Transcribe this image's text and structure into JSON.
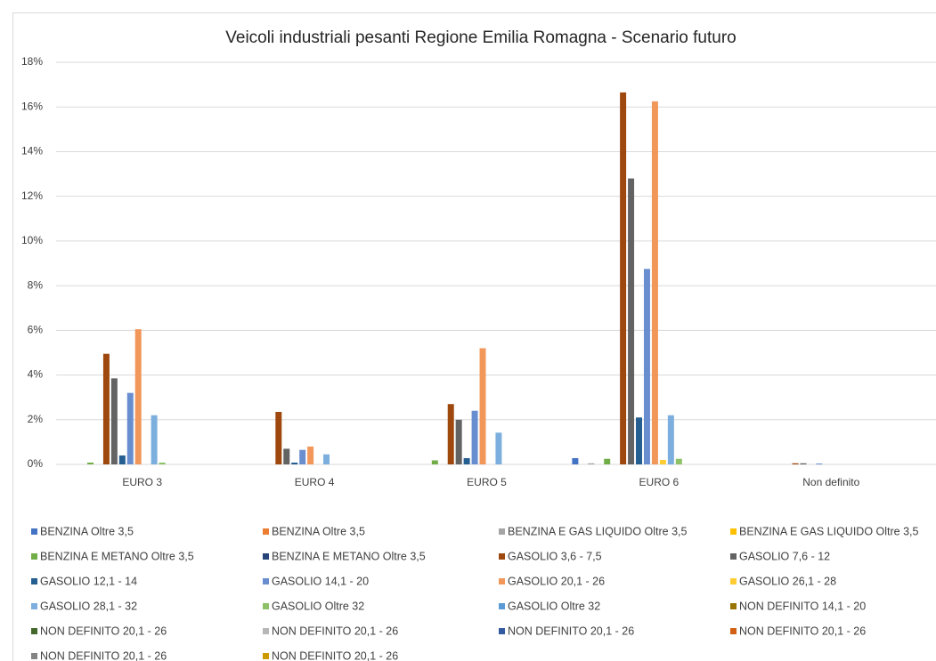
{
  "chart_data": {
    "type": "bar",
    "title": "Veicoli industriali pesanti Regione Emilia Romagna - Scenario futuro",
    "categories": [
      "EURO 3",
      "EURO 4",
      "EURO 5",
      "EURO 6",
      "Non definito"
    ],
    "ylim": [
      0,
      18
    ],
    "yticks": [
      {
        "value": 0,
        "label": "0%"
      },
      {
        "value": 2,
        "label": "2%"
      },
      {
        "value": 4,
        "label": "4%"
      },
      {
        "value": 6,
        "label": "6%"
      },
      {
        "value": 8,
        "label": "8%"
      },
      {
        "value": 10,
        "label": "10%"
      },
      {
        "value": 12,
        "label": "12%"
      },
      {
        "value": 14,
        "label": "14%"
      },
      {
        "value": 16,
        "label": "16%"
      },
      {
        "value": 18,
        "label": "18%"
      }
    ],
    "grid": true,
    "legend": "bottom",
    "series": [
      {
        "name": "BENZINA Oltre 3,5",
        "color": "#4472c4",
        "values": [
          0,
          0,
          0,
          0.28,
          0
        ]
      },
      {
        "name": "BENZINA Oltre 3,5",
        "color": "#ed7d31",
        "values": [
          0,
          0,
          0,
          0,
          0
        ]
      },
      {
        "name": "BENZINA E GAS LIQUIDO Oltre 3,5",
        "color": "#a5a5a5",
        "values": [
          0,
          0,
          0,
          0.05,
          0
        ]
      },
      {
        "name": "BENZINA E GAS LIQUIDO Oltre 3,5",
        "color": "#ffc000",
        "values": [
          0,
          0,
          0,
          0,
          0
        ]
      },
      {
        "name": "BENZINA E METANO Oltre 3,5",
        "color": "#70ad47",
        "values": [
          0.08,
          0,
          0.18,
          0.25,
          0
        ]
      },
      {
        "name": "BENZINA E METANO Oltre 3,5",
        "color": "#264478",
        "values": [
          0,
          0,
          0,
          0,
          0
        ]
      },
      {
        "name": "GASOLIO 3,6 - 7,5",
        "color": "#9e480e",
        "values": [
          4.95,
          2.35,
          2.7,
          16.65,
          0.05
        ]
      },
      {
        "name": "GASOLIO 7,6 - 12",
        "color": "#636363",
        "values": [
          3.85,
          0.7,
          2.0,
          12.8,
          0.05
        ]
      },
      {
        "name": "GASOLIO 12,1 - 14",
        "color": "#255e91",
        "values": [
          0.4,
          0.08,
          0.28,
          2.1,
          0
        ]
      },
      {
        "name": "GASOLIO 14,1 - 20",
        "color": "#698ed0",
        "values": [
          3.2,
          0.65,
          2.4,
          8.75,
          0.04
        ]
      },
      {
        "name": "GASOLIO 20,1 - 26",
        "color": "#f1975a",
        "values": [
          6.05,
          0.8,
          5.2,
          16.25,
          0
        ]
      },
      {
        "name": "GASOLIO 26,1 - 28",
        "color": "#ffcd33",
        "values": [
          0,
          0,
          0,
          0.2,
          0
        ]
      },
      {
        "name": "GASOLIO 28,1 - 32",
        "color": "#7cafdd",
        "values": [
          2.2,
          0.45,
          1.42,
          2.2,
          0
        ]
      },
      {
        "name": "GASOLIO Oltre 32",
        "color": "#8cc168",
        "values": [
          0.08,
          0,
          0,
          0.25,
          0
        ]
      },
      {
        "name": "GASOLIO Oltre 32",
        "color": "#5b9bd5",
        "values": [
          0,
          0,
          0,
          0,
          0
        ]
      },
      {
        "name": "NON DEFINITO 14,1 - 20",
        "color": "#997300",
        "values": [
          0,
          0,
          0,
          0,
          0
        ]
      },
      {
        "name": "NON DEFINITO 20,1 - 26",
        "color": "#43682b",
        "values": [
          0,
          0,
          0,
          0,
          0
        ]
      },
      {
        "name": "NON DEFINITO 20,1 - 26",
        "color": "#b7b7b7",
        "values": [
          0,
          0,
          0,
          0,
          0
        ]
      },
      {
        "name": "NON DEFINITO 20,1 - 26",
        "color": "#335aa1",
        "values": [
          0,
          0,
          0,
          0,
          0
        ]
      },
      {
        "name": "NON DEFINITO 20,1 - 26",
        "color": "#d26012",
        "values": [
          0,
          0,
          0,
          0,
          0
        ]
      },
      {
        "name": "NON DEFINITO 20,1 - 26",
        "color": "#848484",
        "values": [
          0,
          0,
          0,
          0,
          0
        ]
      },
      {
        "name": "NON DEFINITO 20,1 - 26",
        "color": "#cc9a00",
        "values": [
          0,
          0,
          0,
          0,
          0
        ]
      }
    ]
  }
}
